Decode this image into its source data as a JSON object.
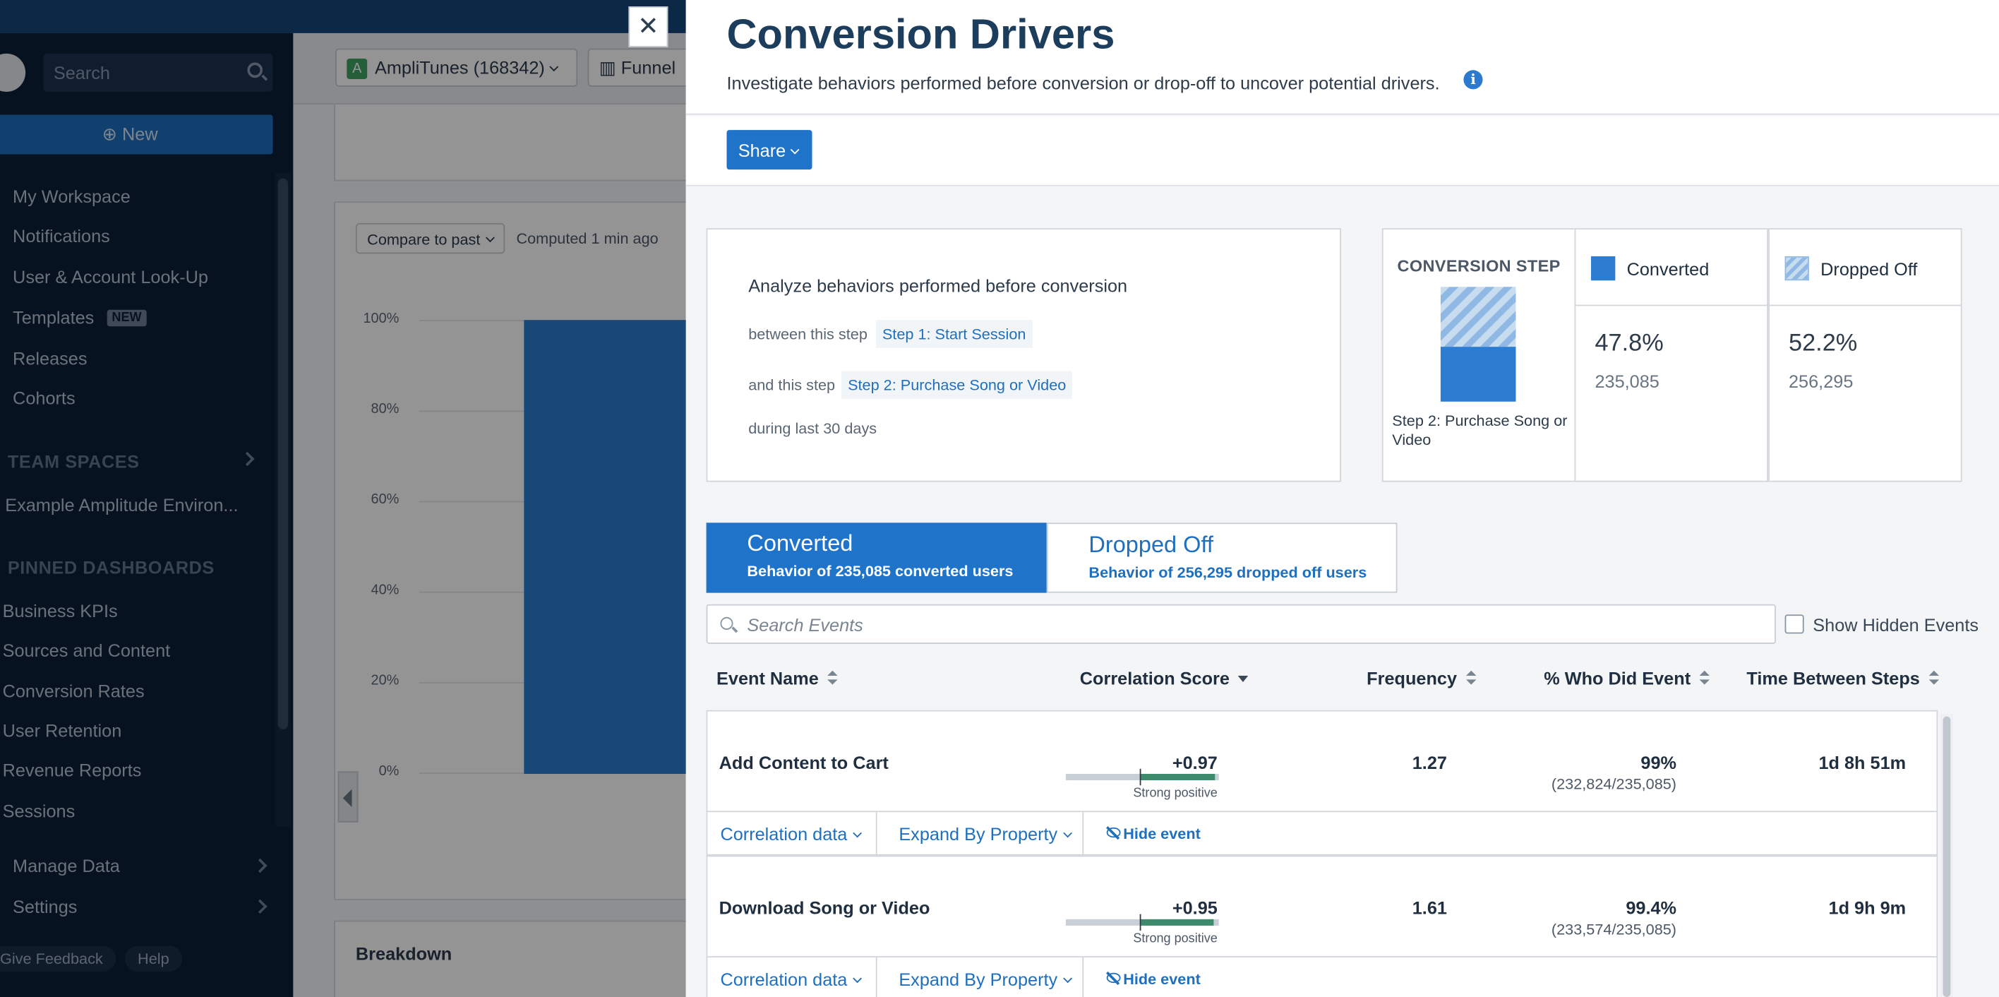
{
  "sidebar": {
    "search_placeholder": "Search",
    "new_label": "New",
    "items": [
      "My Workspace",
      "Notifications",
      "User & Account Look-Up",
      "Templates",
      "Releases",
      "Cohorts"
    ],
    "templates_badge": "NEW",
    "team_spaces_label": "TEAM SPACES",
    "team_space_item": "Example Amplitude Environ...",
    "pinned_label": "PINNED DASHBOARDS",
    "pinned_items": [
      "Business KPIs",
      "Sources and Content",
      "Conversion Rates",
      "User Retention",
      "Revenue Reports",
      "Sessions"
    ],
    "manage_data": "Manage Data",
    "settings": "Settings",
    "give_feedback": "Give Feedback",
    "help": "Help"
  },
  "main": {
    "project_badge": "A",
    "project_label": "AmpliTunes (168342)",
    "chart_type_label": "Funnel",
    "compare_label": "Compare to past",
    "computed_text": "Computed 1 min ago",
    "y_ticks": [
      "100%",
      "80%",
      "60%",
      "40%",
      "20%",
      "0%"
    ],
    "breakdown_title": "Breakdown"
  },
  "modal": {
    "close_label": "✕",
    "title": "Conversion Drivers",
    "subtitle": "Investigate behaviors performed before conversion or drop-off to uncover potential drivers.",
    "info_glyph": "i",
    "share_label": "Share",
    "analyze": {
      "title": "Analyze behaviors performed before conversion",
      "between_label": "between this step",
      "between_value": "Step 1: Start Session",
      "and_label": "and this step",
      "and_value": "Step 2: Purchase Song or Video",
      "period": "during last 30 days"
    },
    "conversion_step": {
      "title": "CONVERSION STEP",
      "step_label": "Step 2: Purchase Song or Video",
      "converted_fraction": 0.478
    },
    "converted": {
      "label": "Converted",
      "pct": "47.8%",
      "count": "235,085"
    },
    "dropped": {
      "label": "Dropped Off",
      "pct": "52.2%",
      "count": "256,295"
    },
    "tabs": {
      "converted_title": "Converted",
      "converted_sub": "Behavior of 235,085 converted users",
      "dropped_title": "Dropped Off",
      "dropped_sub": "Behavior of 256,295 dropped off users"
    },
    "search_placeholder": "Search Events",
    "show_hidden_label": "Show Hidden Events",
    "columns": {
      "event_name": "Event Name",
      "correlation": "Correlation Score",
      "frequency": "Frequency",
      "who_did": "% Who Did Event",
      "time_between": "Time Between Steps"
    },
    "rows": [
      {
        "event": "Add Content to Cart",
        "score": "+0.97",
        "score_value": 0.97,
        "score_label": "Strong positive",
        "frequency": "1.27",
        "who_pct": "99%",
        "who_count": "(232,824/235,085)",
        "time": "1d 8h 51m",
        "action_corr": "Correlation data",
        "action_expand": "Expand By Property",
        "action_hide": "Hide event"
      },
      {
        "event": "Download Song or Video",
        "score": "+0.95",
        "score_value": 0.95,
        "score_label": "Strong positive",
        "frequency": "1.61",
        "who_pct": "99.4%",
        "who_count": "(233,574/235,085)",
        "time": "1d 9h 9m",
        "action_corr": "Correlation data",
        "action_expand": "Expand By Property",
        "action_hide": "Hide event"
      }
    ]
  }
}
